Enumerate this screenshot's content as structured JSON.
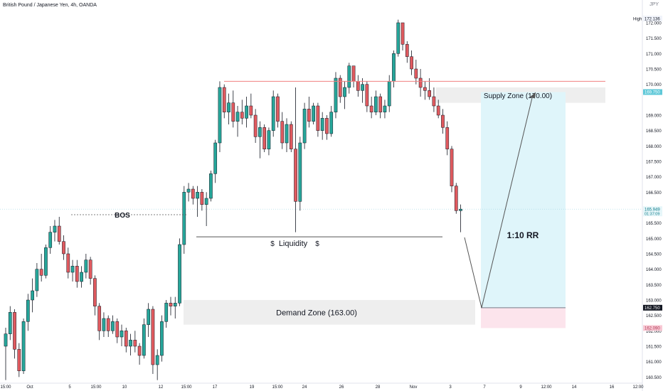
{
  "header": {
    "symbol": "British Pound / Japanese Yen, 4h, OANDA",
    "currency": "JPY"
  },
  "chart_data": {
    "type": "candlestick",
    "ylim": [
      160.3,
      172.6
    ],
    "y_ticks": [
      {
        "value": 160.5,
        "label": "160.500"
      },
      {
        "value": 161.0,
        "label": "161.000"
      },
      {
        "value": 161.5,
        "label": "161.500"
      },
      {
        "value": 162.0,
        "label": "162.000"
      },
      {
        "value": 162.5,
        "label": "162.500"
      },
      {
        "value": 163.0,
        "label": "163.000"
      },
      {
        "value": 163.5,
        "label": "163.500"
      },
      {
        "value": 164.0,
        "label": "164.000"
      },
      {
        "value": 164.5,
        "label": "164.500"
      },
      {
        "value": 165.0,
        "label": "165.000"
      },
      {
        "value": 165.5,
        "label": "165.500"
      },
      {
        "value": 166.5,
        "label": "166.500"
      },
      {
        "value": 167.0,
        "label": "167.000"
      },
      {
        "value": 167.5,
        "label": "167.500"
      },
      {
        "value": 168.0,
        "label": "168.000"
      },
      {
        "value": 168.5,
        "label": "168.500"
      },
      {
        "value": 169.0,
        "label": "169.000"
      },
      {
        "value": 170.0,
        "label": "170.000"
      },
      {
        "value": 170.5,
        "label": "170.500"
      },
      {
        "value": 171.0,
        "label": "171.000"
      },
      {
        "value": 171.5,
        "label": "171.500"
      },
      {
        "value": 172.0,
        "label": "172.000"
      }
    ],
    "x_ticks": [
      "15:00",
      "Oct",
      "5",
      "15:00",
      "10",
      "12",
      "15:00",
      "17",
      "19",
      "15:00",
      "24",
      "26",
      "28",
      "Nov",
      "3",
      "7",
      "9",
      "12:00",
      "14",
      "16",
      "12:00"
    ],
    "price_labels": {
      "high": {
        "label": "High",
        "value": 172.136,
        "text": "172.136"
      },
      "current": {
        "value": 165.949,
        "text": "165.949",
        "timer": "01:37:09"
      },
      "target": {
        "value": 169.75,
        "text": "169.750"
      },
      "entry": {
        "value": 162.75,
        "text": "162.750"
      },
      "stop": {
        "value": 162.09,
        "text": "162.090"
      }
    },
    "annotations": {
      "bos": "BOS",
      "liquidity": "Liquidity",
      "liquidity_symbol": "$",
      "supply_zone": {
        "label": "Supply Zone (170.00)",
        "low": 169.4,
        "high": 169.9
      },
      "demand_zone": {
        "label": "Demand Zone (163.00)",
        "low": 162.2,
        "high": 163.0
      },
      "risk_reward": "1:10 RR",
      "bos_level": 165.77,
      "liquidity_level": 165.05,
      "resistance_level": 170.1
    },
    "candles": [
      [
        161.5,
        162.1,
        160.4,
        161.9
      ],
      [
        161.9,
        162.8,
        161.7,
        162.6
      ],
      [
        162.6,
        162.7,
        161.1,
        161.4
      ],
      [
        161.4,
        161.6,
        160.5,
        160.7
      ],
      [
        160.7,
        162.4,
        160.6,
        162.3
      ],
      [
        162.3,
        163.2,
        162.0,
        163.0
      ],
      [
        163.0,
        163.7,
        162.6,
        163.3
      ],
      [
        163.3,
        164.2,
        163.1,
        164.0
      ],
      [
        164.0,
        164.5,
        163.6,
        163.8
      ],
      [
        163.8,
        164.8,
        163.7,
        164.7
      ],
      [
        164.7,
        165.4,
        164.5,
        165.2
      ],
      [
        165.2,
        165.6,
        164.9,
        165.4
      ],
      [
        165.4,
        165.7,
        164.8,
        164.9
      ],
      [
        164.9,
        165.1,
        164.3,
        164.5
      ],
      [
        164.5,
        164.7,
        163.7,
        163.9
      ],
      [
        163.9,
        164.3,
        163.6,
        164.1
      ],
      [
        164.1,
        164.3,
        163.4,
        163.6
      ],
      [
        163.6,
        164.1,
        163.4,
        163.9
      ],
      [
        163.9,
        164.5,
        163.7,
        164.3
      ],
      [
        164.3,
        164.4,
        163.5,
        163.7
      ],
      [
        163.7,
        163.8,
        162.5,
        162.8
      ],
      [
        162.8,
        162.9,
        161.7,
        162.0
      ],
      [
        162.0,
        162.6,
        161.8,
        162.4
      ],
      [
        162.4,
        162.5,
        161.8,
        162.0
      ],
      [
        162.0,
        162.5,
        161.9,
        162.3
      ],
      [
        162.3,
        162.4,
        161.6,
        161.8
      ],
      [
        161.8,
        162.2,
        161.5,
        162.0
      ],
      [
        162.0,
        162.1,
        161.3,
        161.5
      ],
      [
        161.5,
        161.9,
        161.2,
        161.7
      ],
      [
        161.7,
        162.0,
        161.3,
        161.5
      ],
      [
        161.5,
        161.6,
        160.9,
        161.2
      ],
      [
        161.2,
        162.4,
        161.1,
        162.2
      ],
      [
        162.2,
        162.9,
        161.8,
        162.7
      ],
      [
        162.7,
        162.8,
        160.6,
        160.9
      ],
      [
        160.9,
        161.4,
        160.4,
        161.2
      ],
      [
        161.2,
        162.5,
        161.0,
        162.3
      ],
      [
        162.3,
        163.0,
        162.1,
        162.9
      ],
      [
        162.9,
        163.1,
        162.5,
        162.8
      ],
      [
        162.8,
        163.1,
        162.4,
        162.9
      ],
      [
        162.9,
        165.0,
        162.8,
        164.8
      ],
      [
        164.8,
        166.7,
        164.5,
        166.5
      ],
      [
        166.5,
        166.8,
        166.2,
        166.6
      ],
      [
        166.6,
        166.7,
        166.1,
        166.3
      ],
      [
        166.3,
        166.7,
        165.7,
        166.5
      ],
      [
        166.5,
        166.6,
        165.9,
        166.1
      ],
      [
        166.1,
        166.5,
        165.4,
        166.3
      ],
      [
        166.3,
        167.2,
        166.2,
        167.1
      ],
      [
        167.1,
        168.2,
        166.8,
        168.1
      ],
      [
        168.1,
        170.1,
        167.8,
        169.9
      ],
      [
        169.9,
        170.0,
        168.9,
        169.1
      ],
      [
        169.1,
        169.7,
        168.7,
        169.4
      ],
      [
        169.4,
        169.8,
        168.6,
        168.8
      ],
      [
        168.8,
        169.3,
        168.3,
        169.1
      ],
      [
        169.1,
        169.5,
        168.7,
        168.9
      ],
      [
        168.9,
        169.6,
        168.6,
        169.3
      ],
      [
        169.3,
        169.7,
        168.9,
        169.0
      ],
      [
        169.0,
        169.2,
        168.1,
        168.3
      ],
      [
        168.3,
        168.8,
        167.6,
        168.6
      ],
      [
        168.6,
        168.7,
        167.8,
        167.9
      ],
      [
        167.9,
        168.6,
        167.7,
        168.5
      ],
      [
        168.5,
        169.8,
        168.3,
        169.6
      ],
      [
        169.6,
        169.7,
        168.6,
        168.8
      ],
      [
        168.8,
        169.1,
        167.9,
        168.1
      ],
      [
        168.1,
        168.9,
        167.8,
        168.7
      ],
      [
        168.7,
        168.8,
        167.8,
        167.9
      ],
      [
        167.9,
        169.9,
        165.2,
        166.2
      ],
      [
        166.2,
        168.3,
        165.9,
        168.1
      ],
      [
        168.1,
        169.4,
        167.9,
        169.2
      ],
      [
        169.2,
        169.6,
        168.6,
        168.8
      ],
      [
        168.8,
        169.4,
        168.7,
        169.3
      ],
      [
        169.3,
        169.4,
        168.3,
        168.5
      ],
      [
        168.5,
        169.1,
        168.2,
        168.9
      ],
      [
        168.9,
        169.0,
        168.2,
        168.4
      ],
      [
        168.4,
        169.3,
        168.3,
        169.1
      ],
      [
        169.1,
        170.4,
        168.9,
        170.2
      ],
      [
        170.2,
        170.3,
        169.4,
        169.6
      ],
      [
        169.6,
        170.1,
        169.2,
        169.9
      ],
      [
        169.9,
        170.7,
        169.7,
        170.6
      ],
      [
        170.6,
        170.6,
        169.9,
        170.1
      ],
      [
        170.1,
        170.3,
        169.6,
        169.8
      ],
      [
        169.8,
        170.2,
        169.4,
        170.0
      ],
      [
        170.0,
        170.1,
        169.1,
        169.3
      ],
      [
        169.3,
        169.6,
        168.9,
        169.1
      ],
      [
        169.1,
        169.8,
        169.0,
        169.6
      ],
      [
        169.6,
        169.7,
        168.9,
        169.1
      ],
      [
        169.1,
        169.5,
        168.9,
        169.3
      ],
      [
        169.3,
        170.3,
        169.1,
        170.1
      ],
      [
        170.1,
        171.1,
        169.9,
        171.0
      ],
      [
        171.0,
        172.1,
        170.9,
        172.0
      ],
      [
        172.0,
        172.0,
        171.1,
        171.3
      ],
      [
        171.3,
        171.4,
        170.7,
        170.9
      ],
      [
        170.9,
        171.1,
        170.3,
        170.5
      ],
      [
        170.5,
        170.8,
        170.0,
        170.2
      ],
      [
        170.2,
        170.5,
        169.6,
        169.9
      ],
      [
        169.9,
        170.1,
        169.5,
        169.8
      ],
      [
        169.8,
        170.2,
        169.5,
        169.6
      ],
      [
        169.6,
        169.9,
        169.1,
        169.3
      ],
      [
        169.3,
        169.5,
        168.9,
        169.0
      ],
      [
        169.0,
        169.2,
        168.4,
        168.6
      ],
      [
        168.6,
        168.8,
        167.7,
        167.9
      ],
      [
        167.9,
        168.0,
        166.5,
        166.7
      ],
      [
        166.7,
        166.8,
        165.8,
        165.9
      ],
      [
        165.9,
        166.1,
        165.2,
        165.95
      ]
    ]
  }
}
